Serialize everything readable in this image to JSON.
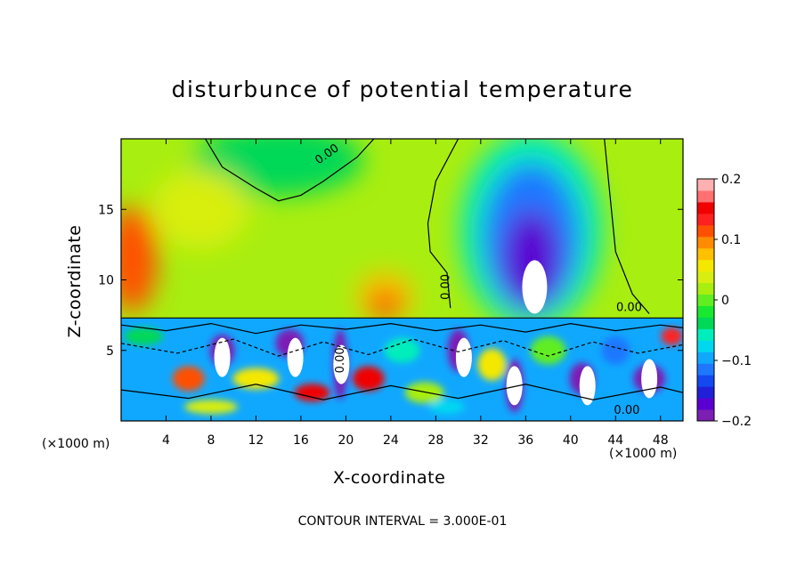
{
  "chart_data": {
    "type": "heatmap",
    "title": "disturbunce of potential temperature",
    "xlabel": "X-coordinate",
    "ylabel": "Z-coordinate",
    "x_unit_left": "(×1000 m)",
    "x_unit_right": "(×1000 m)",
    "xlim": [
      0,
      50
    ],
    "ylim": [
      0,
      20
    ],
    "x_ticks": [
      4,
      8,
      12,
      16,
      20,
      24,
      28,
      32,
      36,
      40,
      44,
      48
    ],
    "y_ticks": [
      5,
      10,
      15
    ],
    "colorbar": {
      "range": [
        -0.2,
        0.2
      ],
      "ticks": [
        {
          "value": 0.2,
          "label": "0.2"
        },
        {
          "value": 0.1,
          "label": "0.1"
        },
        {
          "value": 0,
          "label": "0"
        },
        {
          "value": -0.1,
          "label": "-0.1"
        },
        {
          "value": -0.2,
          "label": "-0.2"
        }
      ],
      "colors": [
        "#7d1fb4",
        "#5a00d2",
        "#2020d8",
        "#1448f0",
        "#1e78ff",
        "#10a8ff",
        "#00d8f0",
        "#00eebc",
        "#00d858",
        "#18e830",
        "#60ee20",
        "#a8ee10",
        "#d8ee10",
        "#f4e800",
        "#ffc000",
        "#ff8c00",
        "#ff5000",
        "#ff2020",
        "#f00000",
        "#ff7070",
        "#ffb0b0"
      ]
    },
    "contour_interval": "CONTOUR INTERVAL = 3.000E-01",
    "contour_labels": [
      "0.00",
      "0.00",
      "0.00",
      "0.00",
      "0.00"
    ],
    "features": [
      {
        "name": "cold anomaly aloft",
        "x": 36.5,
        "z": 14,
        "value": -0.2
      },
      {
        "name": "warm anomaly",
        "x": 23.5,
        "z": 9,
        "value": 0.15
      },
      {
        "name": "warm edge",
        "x": 0.5,
        "z": 12,
        "value": 0.12
      },
      {
        "name": "upper-left cool region",
        "x": 13,
        "z": 19,
        "value": -0.03
      }
    ],
    "boundary_layer_top_z": 7.3
  },
  "footer": "CONTOUR INTERVAL = 3.000E-01"
}
